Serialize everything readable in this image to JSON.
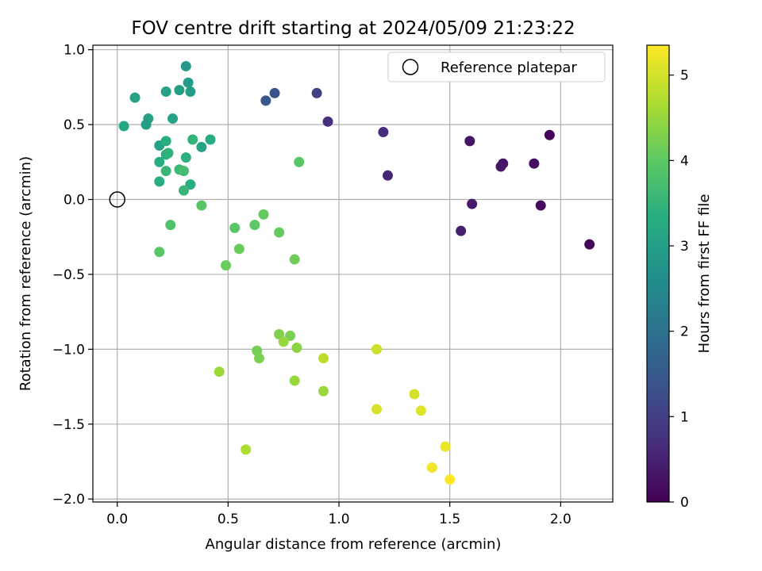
{
  "chart_data": {
    "type": "scatter",
    "title": "FOV centre drift starting at 2024/05/09 21:23:22",
    "xlabel": "Angular distance from reference (arcmin)",
    "ylabel": "Rotation from reference (arcmin)",
    "xlim": [
      -0.11,
      2.235
    ],
    "ylim": [
      -2.02,
      1.03
    ],
    "xticks": [
      "0.0",
      "0.5",
      "1.0",
      "1.5",
      "2.0"
    ],
    "yticks": [
      "1.0",
      "0.5",
      "0.0",
      "−0.5",
      "−1.0",
      "−1.5",
      "−2.0"
    ],
    "grid": true,
    "legend": {
      "position": "top-right",
      "entries": [
        "Reference platepar"
      ]
    },
    "reference": {
      "x": 0.0,
      "y": 0.0
    },
    "colorbar": {
      "label": "Hours from first FF file",
      "colormap": "viridis",
      "range": [
        0,
        5.35
      ],
      "ticks": [
        "0",
        "1",
        "2",
        "3",
        "4",
        "5"
      ]
    },
    "points": [
      {
        "x": 1.95,
        "y": 0.43,
        "c": 0.05
      },
      {
        "x": 2.13,
        "y": -0.3,
        "c": 0.1
      },
      {
        "x": 1.91,
        "y": -0.04,
        "c": 0.15
      },
      {
        "x": 1.88,
        "y": 0.24,
        "c": 0.2
      },
      {
        "x": 1.74,
        "y": 0.24,
        "c": 0.3
      },
      {
        "x": 1.73,
        "y": 0.22,
        "c": 0.35
      },
      {
        "x": 1.59,
        "y": 0.39,
        "c": 0.3
      },
      {
        "x": 1.6,
        "y": -0.03,
        "c": 0.4
      },
      {
        "x": 1.55,
        "y": -0.21,
        "c": 0.45
      },
      {
        "x": 1.22,
        "y": 0.16,
        "c": 0.6
      },
      {
        "x": 1.2,
        "y": 0.45,
        "c": 0.65
      },
      {
        "x": 0.95,
        "y": 0.52,
        "c": 0.7
      },
      {
        "x": 0.9,
        "y": 0.71,
        "c": 1.05
      },
      {
        "x": 0.71,
        "y": 0.71,
        "c": 1.35
      },
      {
        "x": 0.67,
        "y": 0.66,
        "c": 1.45
      },
      {
        "x": 0.31,
        "y": 0.89,
        "c": 2.9
      },
      {
        "x": 0.32,
        "y": 0.78,
        "c": 2.9
      },
      {
        "x": 0.33,
        "y": 0.72,
        "c": 2.95
      },
      {
        "x": 0.28,
        "y": 0.73,
        "c": 3.0
      },
      {
        "x": 0.22,
        "y": 0.72,
        "c": 3.05
      },
      {
        "x": 0.08,
        "y": 0.68,
        "c": 3.1
      },
      {
        "x": 0.14,
        "y": 0.54,
        "c": 3.05
      },
      {
        "x": 0.25,
        "y": 0.54,
        "c": 3.05
      },
      {
        "x": 0.13,
        "y": 0.5,
        "c": 3.0
      },
      {
        "x": 0.03,
        "y": 0.49,
        "c": 3.2
      },
      {
        "x": 0.19,
        "y": 0.36,
        "c": 3.1
      },
      {
        "x": 0.22,
        "y": 0.39,
        "c": 3.35
      },
      {
        "x": 0.22,
        "y": 0.3,
        "c": 3.35
      },
      {
        "x": 0.23,
        "y": 0.31,
        "c": 3.45
      },
      {
        "x": 0.19,
        "y": 0.25,
        "c": 3.3
      },
      {
        "x": 0.31,
        "y": 0.28,
        "c": 3.4
      },
      {
        "x": 0.34,
        "y": 0.4,
        "c": 3.5
      },
      {
        "x": 0.38,
        "y": 0.35,
        "c": 3.1
      },
      {
        "x": 0.42,
        "y": 0.4,
        "c": 3.3
      },
      {
        "x": 0.22,
        "y": 0.19,
        "c": 3.55
      },
      {
        "x": 0.28,
        "y": 0.2,
        "c": 3.6
      },
      {
        "x": 0.3,
        "y": 0.19,
        "c": 3.7
      },
      {
        "x": 0.19,
        "y": 0.12,
        "c": 3.35
      },
      {
        "x": 0.33,
        "y": 0.1,
        "c": 3.35
      },
      {
        "x": 0.3,
        "y": 0.06,
        "c": 3.55
      },
      {
        "x": 0.82,
        "y": 0.25,
        "c": 3.95
      },
      {
        "x": 0.38,
        "y": -0.04,
        "c": 3.95
      },
      {
        "x": 0.24,
        "y": -0.17,
        "c": 3.85
      },
      {
        "x": 0.19,
        "y": -0.35,
        "c": 3.95
      },
      {
        "x": 0.66,
        "y": -0.1,
        "c": 4.05
      },
      {
        "x": 0.62,
        "y": -0.17,
        "c": 4.0
      },
      {
        "x": 0.53,
        "y": -0.19,
        "c": 3.95
      },
      {
        "x": 0.73,
        "y": -0.22,
        "c": 4.05
      },
      {
        "x": 0.55,
        "y": -0.33,
        "c": 4.1
      },
      {
        "x": 0.8,
        "y": -0.4,
        "c": 4.15
      },
      {
        "x": 0.49,
        "y": -0.44,
        "c": 4.1
      },
      {
        "x": 0.73,
        "y": -0.9,
        "c": 4.3
      },
      {
        "x": 0.78,
        "y": -0.91,
        "c": 4.25
      },
      {
        "x": 0.75,
        "y": -0.95,
        "c": 4.5
      },
      {
        "x": 0.81,
        "y": -0.99,
        "c": 4.4
      },
      {
        "x": 0.63,
        "y": -1.01,
        "c": 4.2
      },
      {
        "x": 0.64,
        "y": -1.06,
        "c": 4.25
      },
      {
        "x": 0.46,
        "y": -1.15,
        "c": 4.55
      },
      {
        "x": 0.8,
        "y": -1.21,
        "c": 4.5
      },
      {
        "x": 0.93,
        "y": -1.06,
        "c": 4.8
      },
      {
        "x": 0.93,
        "y": -1.28,
        "c": 4.5
      },
      {
        "x": 0.58,
        "y": -1.67,
        "c": 4.7
      },
      {
        "x": 1.17,
        "y": -1.0,
        "c": 4.95
      },
      {
        "x": 1.17,
        "y": -1.4,
        "c": 5.05
      },
      {
        "x": 1.34,
        "y": -1.3,
        "c": 5.0
      },
      {
        "x": 1.37,
        "y": -1.41,
        "c": 5.1
      },
      {
        "x": 1.48,
        "y": -1.65,
        "c": 5.2
      },
      {
        "x": 1.42,
        "y": -1.79,
        "c": 5.25
      },
      {
        "x": 1.5,
        "y": -1.87,
        "c": 5.35
      }
    ]
  }
}
